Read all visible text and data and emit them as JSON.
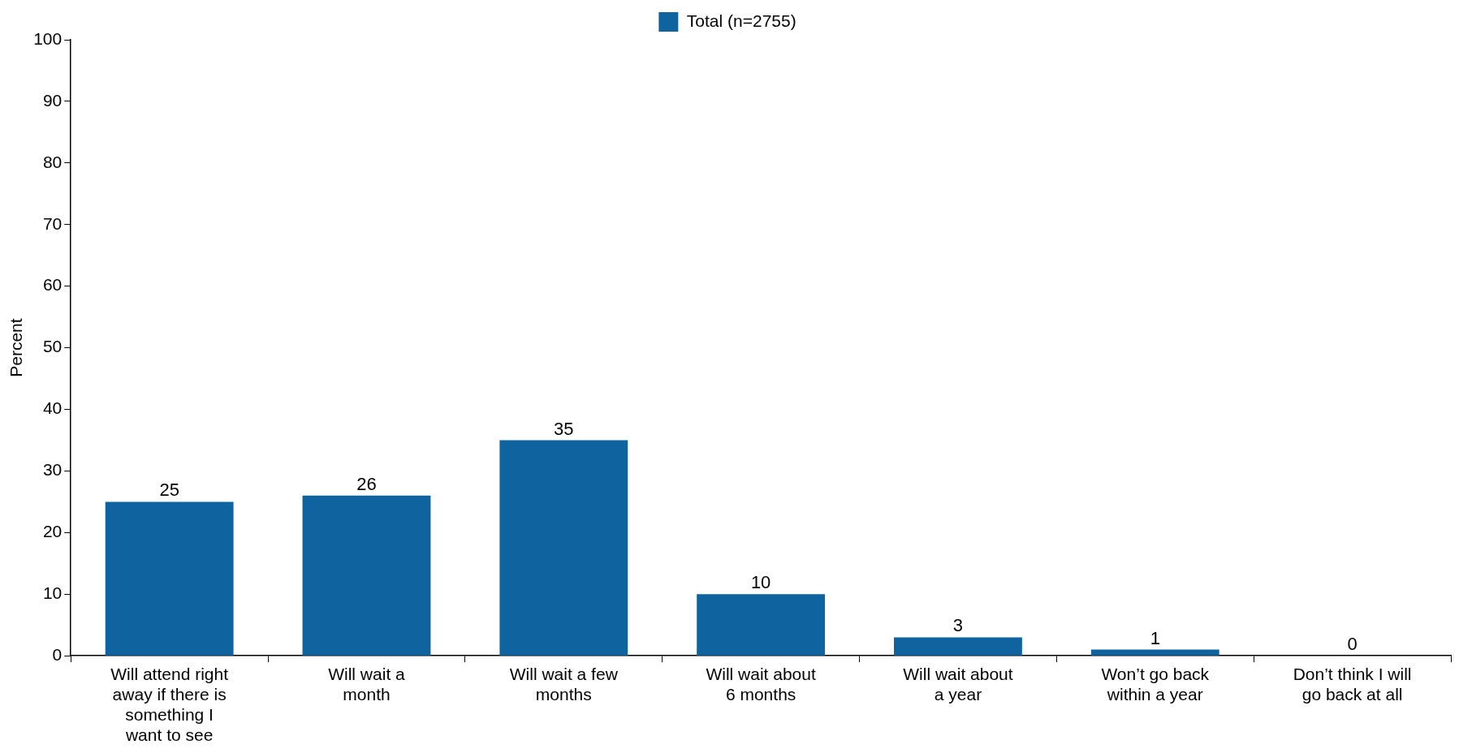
{
  "chart_data": {
    "type": "bar",
    "ylabel": "Percent",
    "categories": [
      "Will attend right away if there is something I want to see",
      "Will wait a month",
      "Will wait a few months",
      "Will wait about 6 months",
      "Will wait about a year",
      "Won’t go back within a year",
      "Don’t think I will go back at all"
    ],
    "series": [
      {
        "name": "Total (n=2755)",
        "color": "#0f64a0",
        "values": [
          25,
          26,
          35,
          10,
          3,
          1,
          0
        ]
      }
    ],
    "ylim": [
      0,
      100
    ],
    "yticks": [
      0,
      10,
      20,
      30,
      40,
      50,
      60,
      70,
      80,
      90,
      100
    ],
    "grid": false,
    "legend": "top",
    "data_labels": true
  }
}
